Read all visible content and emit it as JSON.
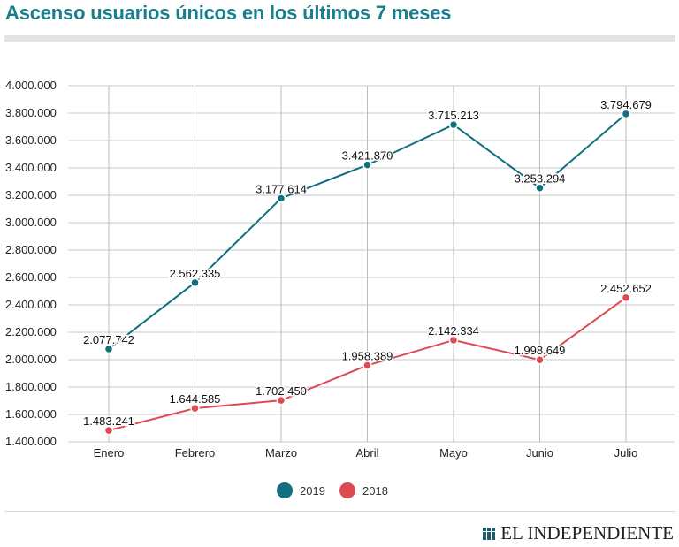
{
  "header": {
    "title": "Ascenso usuarios únicos en los últimos 7 meses"
  },
  "chart_data": {
    "type": "line",
    "title": "Ascenso usuarios únicos en los últimos 7 meses",
    "categories": [
      "Enero",
      "Febrero",
      "Marzo",
      "Abril",
      "Mayo",
      "Junio",
      "Julio"
    ],
    "y_ticks": [
      "4.000.000",
      "3.800.000",
      "3.600.000",
      "3.400.000",
      "3.200.000",
      "3.000.000",
      "2.800.000",
      "2.600.000",
      "2.400.000",
      "2.200.000",
      "2.000.000",
      "1.800.000",
      "1.600.000",
      "1.400.000"
    ],
    "ylim": [
      1400000,
      4000000
    ],
    "grid": true,
    "legend_position": "bottom-center",
    "series": [
      {
        "name": "2019",
        "color": "#116f7e",
        "values": [
          2077742,
          2562335,
          3177614,
          3421870,
          3715213,
          3253294,
          3794679
        ],
        "labels": [
          "2.077.742",
          "2.562.335",
          "3.177.614",
          "3.421.870",
          "3.715.213",
          "3.253.294",
          "3.794.679"
        ]
      },
      {
        "name": "2018",
        "color": "#dd4a51",
        "values": [
          1483241,
          1644585,
          1702450,
          1958389,
          2142334,
          1998649,
          2452652
        ],
        "labels": [
          "1.483.241",
          "1.644.585",
          "1.702.450",
          "1.958.389",
          "2.142.334",
          "1.998.649",
          "2.452.652"
        ]
      }
    ]
  },
  "footer": {
    "brand": "EL INDEPENDIENTE",
    "brand_icon": "grid-logo-icon",
    "brand_color": "#1a5e6c"
  }
}
